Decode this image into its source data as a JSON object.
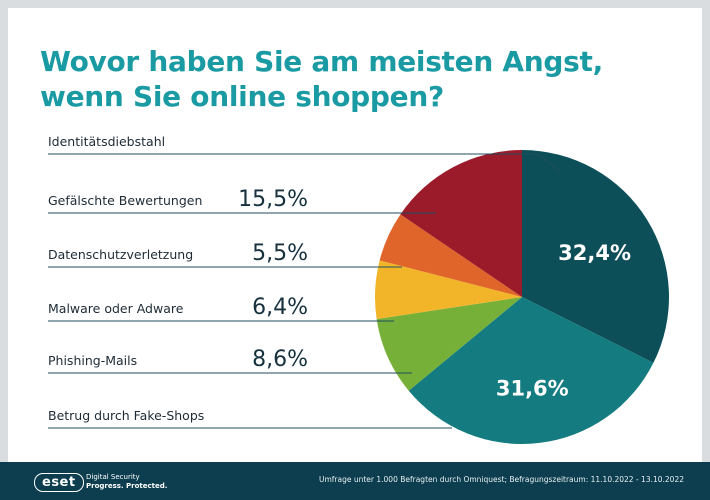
{
  "title": {
    "line1": "Wovor haben Sie am meisten Angst,",
    "line2": "wenn Sie online shoppen?"
  },
  "chart_data": {
    "type": "pie",
    "title": "Wovor haben Sie am meisten Angst, wenn Sie online shoppen?",
    "categories": [
      "Identitätsdiebstahl",
      "Gefälschte Bewertungen",
      "Datenschutzverletzung",
      "Malware oder Adware",
      "Phishing-Mails",
      "Betrug durch Fake-Shops"
    ],
    "values": [
      32.4,
      15.5,
      5.5,
      6.4,
      8.6,
      31.6
    ],
    "value_labels": [
      "32,4%",
      "15,5%",
      "5,5%",
      "6,4%",
      "8,6%",
      "31,6%"
    ],
    "colors": [
      "#0c4f59",
      "#9b1b2b",
      "#e0652a",
      "#f2b52a",
      "#77b039",
      "#147c80"
    ]
  },
  "footer": {
    "brand": "eset",
    "tagline_line1": "Digital Security",
    "tagline_line2": "Progress. Protected.",
    "source": "Umfrage unter 1.000 Befragten durch Omniquest; Befragungszeitraum: 11.10.2022 - 13.10.2022"
  }
}
